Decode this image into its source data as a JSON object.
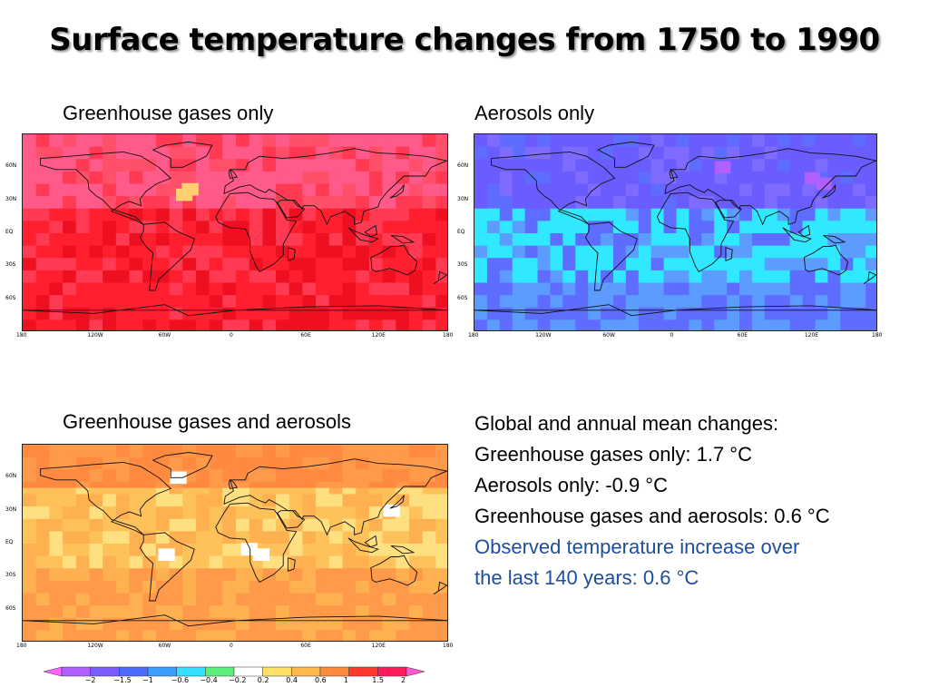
{
  "title": "Surface temperature changes from 1750 to 1990",
  "panels": [
    {
      "label": "Greenhouse gases only",
      "palette": [
        "#ff1f2e",
        "#ff3a52",
        "#ff5a8a",
        "#ff4f6a",
        "#ee1020"
      ],
      "spot": "#ffd070"
    },
    {
      "label": "Aerosols only",
      "palette": [
        "#6a5cff",
        "#7e6bff",
        "#5e6dff",
        "#30e8ff",
        "#5c9cff"
      ],
      "spot": "#b060ff"
    },
    {
      "label": "Greenhouse gases and aerosols",
      "palette": [
        "#ff9a4a",
        "#ffb050",
        "#ffc25a",
        "#ff8a40",
        "#ffe080"
      ],
      "spot": "#ffffff"
    }
  ],
  "axes": {
    "lon_ticks": [
      "180",
      "120W",
      "60W",
      "0",
      "60E",
      "120E",
      "180"
    ],
    "lat_ticks": [
      "60N",
      "30N",
      "EQ",
      "30S",
      "60S"
    ]
  },
  "summary": {
    "heading": "Global and annual mean changes:",
    "ghg": "Greenhouse gases only: 1.7 °C",
    "aer": "Aerosols only: -0.9 °C",
    "both": "Greenhouse gases and aerosols: 0.6 °C",
    "obs_line1": "Observed temperature increase over",
    "obs_line2": "the last 140 years: 0.6 °C"
  },
  "colorbar": {
    "labels": [
      "−2",
      "−1.5",
      "−1",
      "−0.6",
      "−0.4",
      "−0.2",
      "0.2",
      "0.4",
      "0.6",
      "1",
      "1.5",
      "2"
    ],
    "colors": [
      "#ff66ff",
      "#b060ff",
      "#7a5cff",
      "#4b6bff",
      "#3aa0ff",
      "#33e0ff",
      "#5cf07a",
      "#ffffff",
      "#ffe066",
      "#ffb84a",
      "#ff8a3a",
      "#ff3a2a",
      "#ff1a5a",
      "#ff5ad0"
    ]
  }
}
